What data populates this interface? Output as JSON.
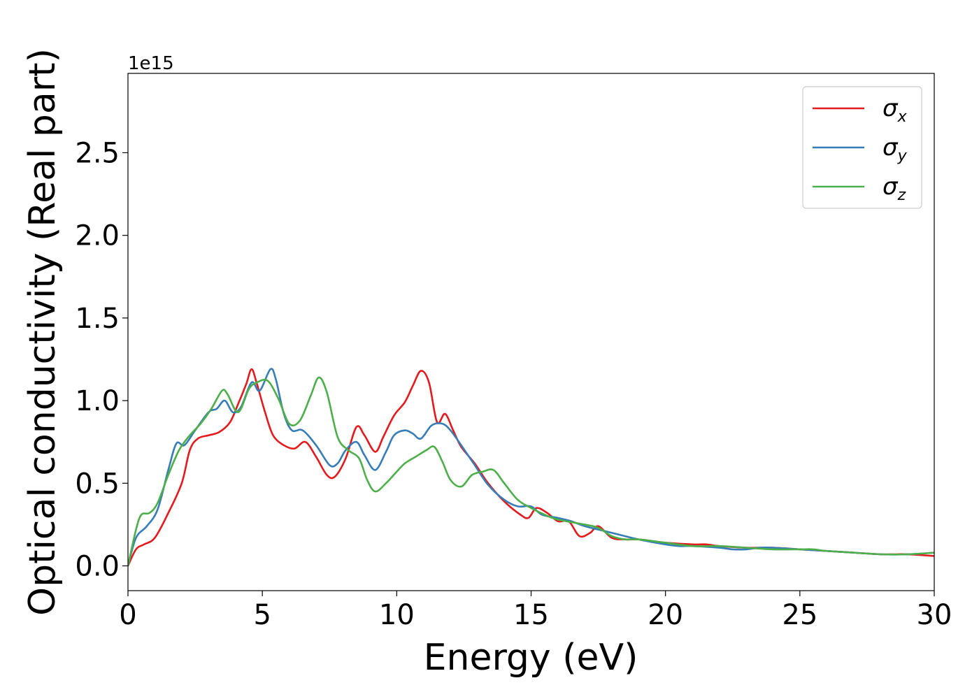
{
  "chart_data": {
    "type": "line",
    "title": "",
    "xlabel": "Energy (eV)",
    "ylabel": "Optical conductivity (Real part)",
    "y_offset_label": "1e15",
    "xlim": [
      0,
      30
    ],
    "ylim": [
      -0.15,
      2.98
    ],
    "xticks": [
      0,
      5,
      10,
      15,
      20,
      25,
      30
    ],
    "yticks": [
      0.0,
      0.5,
      1.0,
      1.5,
      2.0,
      2.5
    ],
    "xtick_labels": [
      "0",
      "5",
      "10",
      "15",
      "20",
      "25",
      "30"
    ],
    "ytick_labels": [
      "0.0",
      "0.5",
      "1.0",
      "1.5",
      "2.0",
      "2.5"
    ],
    "grid": false,
    "legend_position": "top-right",
    "series": [
      {
        "name": "σx",
        "symbol": "σ",
        "sub": "x",
        "color": "#e41a1c",
        "points": [
          [
            0,
            0
          ],
          [
            0.3,
            0.1
          ],
          [
            0.6,
            0.13
          ],
          [
            1,
            0.17
          ],
          [
            1.5,
            0.32
          ],
          [
            2,
            0.5
          ],
          [
            2.3,
            0.7
          ],
          [
            2.6,
            0.77
          ],
          [
            3,
            0.79
          ],
          [
            3.4,
            0.81
          ],
          [
            3.8,
            0.87
          ],
          [
            4.1,
            0.98
          ],
          [
            4.4,
            1.1
          ],
          [
            4.6,
            1.19
          ],
          [
            4.8,
            1.1
          ],
          [
            5.1,
            0.93
          ],
          [
            5.4,
            0.79
          ],
          [
            5.8,
            0.73
          ],
          [
            6.2,
            0.71
          ],
          [
            6.6,
            0.75
          ],
          [
            7,
            0.66
          ],
          [
            7.4,
            0.55
          ],
          [
            7.7,
            0.54
          ],
          [
            8.1,
            0.65
          ],
          [
            8.5,
            0.84
          ],
          [
            8.8,
            0.79
          ],
          [
            9.2,
            0.69
          ],
          [
            9.5,
            0.78
          ],
          [
            9.9,
            0.91
          ],
          [
            10.3,
            0.99
          ],
          [
            10.6,
            1.09
          ],
          [
            10.9,
            1.18
          ],
          [
            11.2,
            1.11
          ],
          [
            11.5,
            0.87
          ],
          [
            11.8,
            0.92
          ],
          [
            12.1,
            0.82
          ],
          [
            12.4,
            0.72
          ],
          [
            12.9,
            0.62
          ],
          [
            13.4,
            0.5
          ],
          [
            14,
            0.39
          ],
          [
            14.6,
            0.31
          ],
          [
            14.9,
            0.29
          ],
          [
            15.2,
            0.35
          ],
          [
            15.6,
            0.32
          ],
          [
            16,
            0.27
          ],
          [
            16.4,
            0.27
          ],
          [
            16.8,
            0.18
          ],
          [
            17.2,
            0.2
          ],
          [
            17.5,
            0.24
          ],
          [
            18,
            0.17
          ],
          [
            18.5,
            0.16
          ],
          [
            19,
            0.16
          ],
          [
            19.5,
            0.15
          ],
          [
            20,
            0.14
          ],
          [
            21,
            0.13
          ],
          [
            21.5,
            0.13
          ],
          [
            22,
            0.12
          ],
          [
            23,
            0.11
          ],
          [
            24,
            0.11
          ],
          [
            25,
            0.1
          ],
          [
            26,
            0.09
          ],
          [
            27,
            0.08
          ],
          [
            28,
            0.07
          ],
          [
            28.5,
            0.07
          ],
          [
            29,
            0.07
          ],
          [
            30,
            0.06
          ]
        ]
      },
      {
        "name": "σy",
        "symbol": "σ",
        "sub": "y",
        "color": "#377eb8",
        "points": [
          [
            0,
            0
          ],
          [
            0.3,
            0.17
          ],
          [
            0.7,
            0.24
          ],
          [
            1.1,
            0.34
          ],
          [
            1.5,
            0.58
          ],
          [
            1.8,
            0.74
          ],
          [
            2.1,
            0.73
          ],
          [
            2.5,
            0.82
          ],
          [
            3,
            0.93
          ],
          [
            3.3,
            0.95
          ],
          [
            3.6,
            1.0
          ],
          [
            3.9,
            0.93
          ],
          [
            4.2,
            0.96
          ],
          [
            4.6,
            1.11
          ],
          [
            4.9,
            1.06
          ],
          [
            5.3,
            1.19
          ],
          [
            5.5,
            1.13
          ],
          [
            5.8,
            0.92
          ],
          [
            6.1,
            0.82
          ],
          [
            6.5,
            0.82
          ],
          [
            7,
            0.73
          ],
          [
            7.5,
            0.61
          ],
          [
            7.8,
            0.62
          ],
          [
            8.1,
            0.7
          ],
          [
            8.5,
            0.75
          ],
          [
            8.8,
            0.67
          ],
          [
            9.2,
            0.58
          ],
          [
            9.6,
            0.69
          ],
          [
            9.9,
            0.79
          ],
          [
            10.3,
            0.82
          ],
          [
            10.6,
            0.8
          ],
          [
            10.9,
            0.77
          ],
          [
            11.3,
            0.85
          ],
          [
            11.7,
            0.86
          ],
          [
            12,
            0.82
          ],
          [
            12.4,
            0.73
          ],
          [
            12.9,
            0.61
          ],
          [
            13.4,
            0.49
          ],
          [
            14,
            0.4
          ],
          [
            14.5,
            0.36
          ],
          [
            15,
            0.36
          ],
          [
            15.4,
            0.31
          ],
          [
            16,
            0.29
          ],
          [
            16.5,
            0.27
          ],
          [
            17,
            0.24
          ],
          [
            18,
            0.2
          ],
          [
            19,
            0.16
          ],
          [
            20,
            0.13
          ],
          [
            20.5,
            0.12
          ],
          [
            21,
            0.12
          ],
          [
            22,
            0.11
          ],
          [
            22.5,
            0.1
          ],
          [
            23,
            0.1
          ],
          [
            23.5,
            0.11
          ],
          [
            24,
            0.11
          ],
          [
            25,
            0.1
          ],
          [
            26,
            0.09
          ],
          [
            27,
            0.08
          ],
          [
            28,
            0.07
          ],
          [
            29,
            0.07
          ],
          [
            30,
            0.08
          ]
        ]
      },
      {
        "name": "σz",
        "symbol": "σ",
        "sub": "z",
        "color": "#4daf4a",
        "points": [
          [
            0,
            0
          ],
          [
            0.3,
            0.22
          ],
          [
            0.5,
            0.31
          ],
          [
            0.8,
            0.32
          ],
          [
            1.1,
            0.38
          ],
          [
            1.5,
            0.55
          ],
          [
            1.9,
            0.7
          ],
          [
            2.3,
            0.79
          ],
          [
            2.7,
            0.86
          ],
          [
            3.1,
            0.95
          ],
          [
            3.5,
            1.06
          ],
          [
            3.7,
            1.04
          ],
          [
            4.1,
            0.93
          ],
          [
            4.5,
            1.07
          ],
          [
            4.8,
            1.11
          ],
          [
            5.2,
            1.12
          ],
          [
            5.6,
            1.01
          ],
          [
            6,
            0.86
          ],
          [
            6.4,
            0.88
          ],
          [
            6.8,
            1.03
          ],
          [
            7.1,
            1.14
          ],
          [
            7.4,
            1.05
          ],
          [
            7.8,
            0.78
          ],
          [
            8.2,
            0.7
          ],
          [
            8.6,
            0.65
          ],
          [
            8.9,
            0.52
          ],
          [
            9.2,
            0.45
          ],
          [
            9.6,
            0.5
          ],
          [
            10,
            0.57
          ],
          [
            10.3,
            0.62
          ],
          [
            10.7,
            0.66
          ],
          [
            11.1,
            0.7
          ],
          [
            11.4,
            0.72
          ],
          [
            11.7,
            0.63
          ],
          [
            12,
            0.52
          ],
          [
            12.4,
            0.48
          ],
          [
            12.8,
            0.55
          ],
          [
            13.2,
            0.57
          ],
          [
            13.6,
            0.58
          ],
          [
            14,
            0.5
          ],
          [
            14.5,
            0.4
          ],
          [
            15,
            0.35
          ],
          [
            15.5,
            0.31
          ],
          [
            16,
            0.28
          ],
          [
            17,
            0.25
          ],
          [
            17.5,
            0.23
          ],
          [
            18,
            0.18
          ],
          [
            18.5,
            0.16
          ],
          [
            19,
            0.16
          ],
          [
            20,
            0.14
          ],
          [
            21,
            0.12
          ],
          [
            22,
            0.12
          ],
          [
            23,
            0.11
          ],
          [
            24,
            0.1
          ],
          [
            25,
            0.1
          ],
          [
            25.5,
            0.1
          ],
          [
            26,
            0.09
          ],
          [
            27,
            0.08
          ],
          [
            28,
            0.07
          ],
          [
            29,
            0.07
          ],
          [
            30,
            0.08
          ]
        ]
      }
    ]
  }
}
